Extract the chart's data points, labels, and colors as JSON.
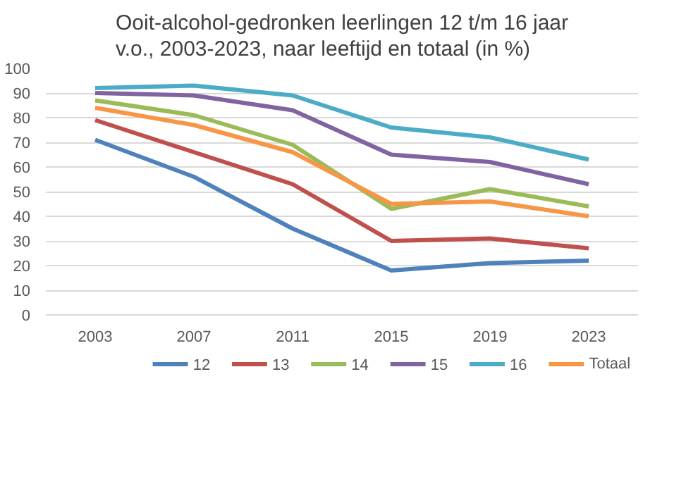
{
  "chart_data": {
    "type": "line",
    "title": "Ooit-alcohol-gedronken leerlingen 12 t/m 16 jaar v.o., 2003-2023, naar leeftijd en totaal (in %)",
    "categories": [
      "2003",
      "2007",
      "2011",
      "2015",
      "2019",
      "2023"
    ],
    "series": [
      {
        "name": "12",
        "color": "#4f81bd",
        "values": [
          71,
          56,
          35,
          18,
          21,
          22
        ]
      },
      {
        "name": "13",
        "color": "#c0504d",
        "values": [
          79,
          66,
          53,
          30,
          31,
          27
        ]
      },
      {
        "name": "14",
        "color": "#9bbb59",
        "values": [
          87,
          81,
          69,
          43,
          51,
          44
        ]
      },
      {
        "name": "15",
        "color": "#8064a2",
        "values": [
          90,
          89,
          83,
          65,
          62,
          53
        ]
      },
      {
        "name": "16",
        "color": "#4bacc6",
        "values": [
          92,
          93,
          89,
          76,
          72,
          63
        ]
      },
      {
        "name": "Totaal",
        "color": "#f79646",
        "values": [
          84,
          77,
          66,
          45,
          46,
          40
        ]
      }
    ],
    "ylim": [
      0,
      100
    ],
    "yticks": [
      0,
      10,
      20,
      30,
      40,
      50,
      60,
      70,
      80,
      90,
      100
    ],
    "grid": "y",
    "legend": "bottom",
    "marker": "none",
    "line_style": "solid"
  }
}
